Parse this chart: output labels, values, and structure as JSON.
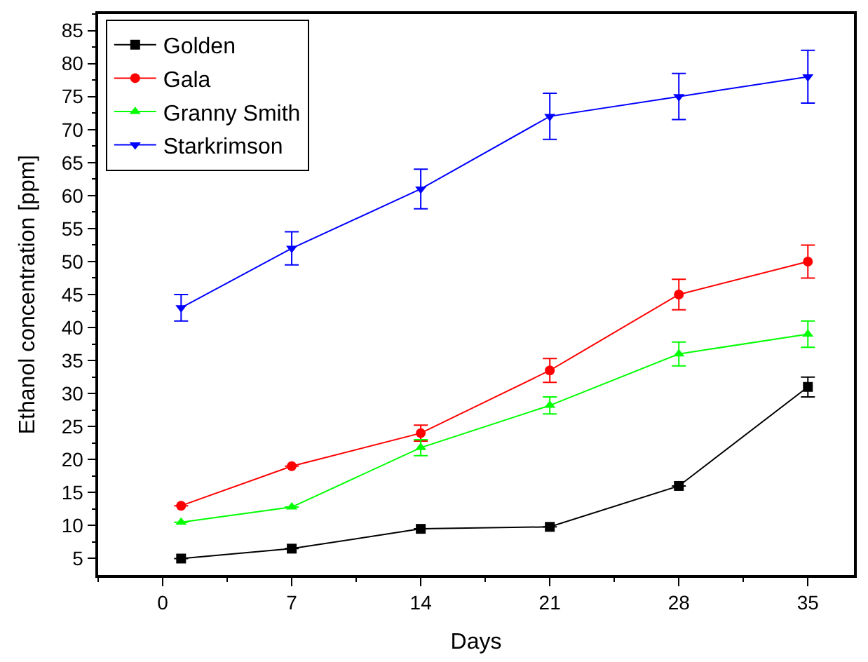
{
  "chart_data": {
    "type": "line",
    "xlabel": "Days",
    "ylabel": "Ethanol concentration [ppm]",
    "x": [
      1,
      7,
      14,
      21,
      28,
      35
    ],
    "xlim": [
      -3.5,
      37.5
    ],
    "xticks": [
      0,
      7,
      14,
      21,
      28,
      35
    ],
    "ylim": [
      2.5,
      87.5
    ],
    "yticks": [
      5,
      10,
      15,
      20,
      25,
      30,
      35,
      40,
      45,
      50,
      55,
      60,
      65,
      70,
      75,
      80,
      85
    ],
    "legend": "top left",
    "line_style": "solid",
    "series": [
      {
        "name": "Golden",
        "color": "#000000",
        "marker": "square",
        "values": [
          5,
          6.5,
          9.5,
          9.8,
          16,
          31
        ],
        "errors": [
          null,
          null,
          null,
          null,
          null,
          1.5
        ]
      },
      {
        "name": "Gala",
        "color": "#ff0000",
        "marker": "circle",
        "values": [
          13,
          19,
          24,
          33.5,
          45,
          50
        ],
        "errors": [
          null,
          null,
          1.2,
          1.8,
          2.3,
          2.5
        ]
      },
      {
        "name": "Granny Smith",
        "color": "#00ff00",
        "marker": "triangle",
        "values": [
          10.5,
          12.8,
          21.8,
          28.2,
          36,
          39
        ],
        "errors": [
          null,
          null,
          1.2,
          1.3,
          1.8,
          2
        ]
      },
      {
        "name": "Starkrimson",
        "color": "#0000ff",
        "marker": "triangle-down",
        "values": [
          43,
          52,
          61,
          72,
          75,
          78
        ],
        "errors": [
          2,
          2.5,
          3,
          3.5,
          3.5,
          4
        ]
      }
    ]
  }
}
